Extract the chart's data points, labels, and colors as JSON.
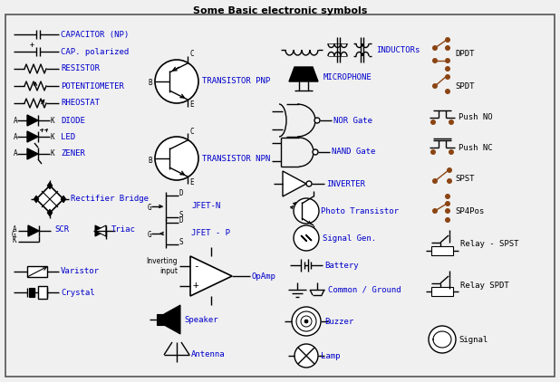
{
  "title": "Some Basic electronic symbols",
  "background_color": "#f0f0f0",
  "border_color": "#888888",
  "text_color_blue": "#0000cc",
  "text_color_black": "#000000",
  "switch_color": "#8B4513",
  "fig_width": 6.18,
  "fig_height": 4.22,
  "labels": {
    "capacitor": "CAPACITOR (NP)",
    "cap_pol": "CAP. polarized",
    "resistor": "RESISTOR",
    "potentiometer": "POTENTIOMETER",
    "rheostat": "RHEOSTAT",
    "diode": "DIODE",
    "led": "LED",
    "zener": "ZENER",
    "rect_bridge": "Rectifier Bridge",
    "scr": "SCR",
    "triac": "Triac",
    "varistor": "Varistor",
    "crystal": "Crystal",
    "transistor_pnp": "TRANSISTOR PNP",
    "transistor_npn": "TRANSISTOR NPN",
    "jfet_n": "JFET-N",
    "jfet_p": "JFET - P",
    "inv_input": "Inverting\ninput",
    "opamp": "OpAmp",
    "speaker": "Speaker",
    "antenna": "Antenna",
    "inductors": "INDUCTORs",
    "microphone": "MICROPHONE",
    "nor_gate": "NOR Gate",
    "nand_gate": "NAND Gate",
    "inverter": "INVERTER",
    "photo_transistor": "Photo Transistor",
    "signal_gen": "Signal Gen.",
    "battery": "Battery",
    "common_ground": "Common / Ground",
    "buzzer": "Buzzer",
    "lamp": "Lamp",
    "dpdt": "DPDT",
    "spdt": "SPDT",
    "push_no": "Push NO",
    "push_nc": "Push NC",
    "spst": "SPST",
    "sp4pos": "SP4Pos",
    "relay_spst": "Relay - SPST",
    "relay_spdt": "Relay SPDT",
    "signal": "Signal"
  }
}
